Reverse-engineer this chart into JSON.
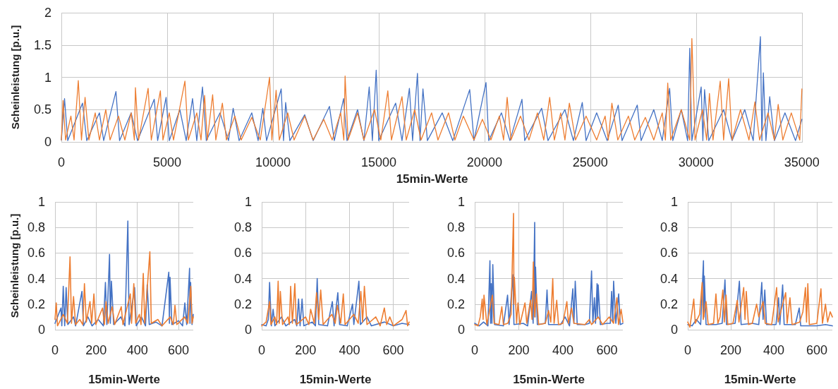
{
  "chart_data": [
    {
      "type": "line",
      "xlabel": "15min-Werte",
      "ylabel": "Scheinleistung [p.u.]",
      "xlim": [
        0,
        35040
      ],
      "xticks": [
        0,
        5000,
        10000,
        15000,
        20000,
        25000,
        30000,
        35000
      ],
      "ylim": [
        0,
        2
      ],
      "yticks": [
        0,
        0.5,
        1,
        1.5,
        2
      ],
      "grid": true,
      "marker": "none",
      "series": [
        {
          "color": "#4472c4",
          "x": [
            0,
            150,
            300,
            1000,
            1200,
            1800,
            2000,
            2580,
            2750,
            3300,
            3600,
            4390,
            4550,
            4950,
            5100,
            5600,
            5900,
            6200,
            6400,
            6670,
            6850,
            7500,
            7900,
            8120,
            8400,
            9000,
            9300,
            9520,
            9700,
            10390,
            10500,
            10600,
            10800,
            11500,
            11900,
            12670,
            12900,
            13340,
            13500,
            14000,
            14300,
            14550,
            14700,
            14880,
            15000,
            15800,
            16100,
            16450,
            16600,
            16830,
            16950,
            17090,
            17300,
            18000,
            18500,
            19300,
            19500,
            20070,
            20200,
            20800,
            21200,
            21770,
            21900,
            22700,
            23000,
            23800,
            24200,
            24620,
            24800,
            25300,
            25800,
            26320,
            26500,
            27220,
            27400,
            28000,
            28400,
            28750,
            28900,
            29300,
            29600,
            29700,
            29800,
            30240,
            30320,
            30400,
            30600,
            31300,
            31700,
            32300,
            32700,
            33040,
            33110,
            33180,
            33300,
            33480,
            33700,
            34200,
            34700,
            35000
          ],
          "values": [
            0.03,
            0.67,
            0.02,
            0.6,
            0.02,
            0.45,
            0.02,
            0.78,
            0.02,
            0.45,
            0.02,
            0.66,
            0.02,
            0.69,
            0.02,
            0.5,
            0.02,
            0.67,
            0.02,
            0.85,
            0.02,
            0.45,
            0.02,
            0.52,
            0.02,
            0.45,
            0.02,
            0.52,
            0.02,
            0.82,
            0.02,
            0.61,
            0.02,
            0.42,
            0.02,
            0.55,
            0.02,
            0.67,
            0.02,
            0.5,
            0.02,
            0.85,
            0.02,
            1.11,
            0.02,
            0.6,
            0.02,
            0.83,
            0.02,
            1.06,
            0.02,
            0.82,
            0.02,
            0.45,
            0.02,
            0.81,
            0.02,
            0.92,
            0.02,
            0.45,
            0.02,
            0.66,
            0.02,
            0.52,
            0.02,
            0.5,
            0.02,
            0.61,
            0.02,
            0.45,
            0.02,
            0.57,
            0.02,
            0.57,
            0.02,
            0.5,
            0.02,
            0.83,
            0.02,
            0.5,
            0.02,
            1.45,
            0.02,
            0.85,
            0.02,
            0.81,
            0.02,
            0.5,
            0.02,
            0.5,
            0.02,
            1.63,
            0.02,
            1.07,
            0.02,
            0.7,
            0.02,
            0.45,
            0.02,
            0.35
          ]
        },
        {
          "color": "#ed7d31",
          "x": [
            0,
            80,
            200,
            450,
            600,
            800,
            950,
            1120,
            1300,
            1600,
            1800,
            2100,
            2300,
            2700,
            3000,
            3300,
            3450,
            3500,
            3650,
            4100,
            4250,
            4680,
            4800,
            5100,
            5300,
            5840,
            6000,
            6400,
            6600,
            6770,
            6900,
            7150,
            7300,
            7610,
            7800,
            8200,
            8500,
            9000,
            9400,
            9840,
            9950,
            10150,
            10300,
            10700,
            11000,
            11500,
            11900,
            12400,
            12800,
            13200,
            13350,
            13410,
            13550,
            14000,
            14300,
            14800,
            15100,
            15430,
            15600,
            16100,
            16300,
            16700,
            17000,
            17500,
            17800,
            18300,
            18600,
            19000,
            19500,
            19900,
            20300,
            20700,
            20900,
            21070,
            21250,
            21700,
            22100,
            22500,
            22800,
            23080,
            23300,
            23600,
            23800,
            24010,
            24300,
            24800,
            25300,
            25700,
            25850,
            26020,
            26300,
            26800,
            27100,
            27600,
            28000,
            28400,
            28550,
            28660,
            28800,
            29300,
            29700,
            29800,
            29950,
            30300,
            30500,
            30630,
            30800,
            31140,
            31300,
            31540,
            31700,
            32100,
            32500,
            32780,
            33000,
            33400,
            33700,
            33880,
            34100,
            34500,
            34900,
            35000
          ],
          "values": [
            0.03,
            0.64,
            0.03,
            0.4,
            0.03,
            0.95,
            0.03,
            0.69,
            0.03,
            0.45,
            0.03,
            0.5,
            0.03,
            0.4,
            0.03,
            0.45,
            0.03,
            0.84,
            0.03,
            0.83,
            0.03,
            0.79,
            0.03,
            0.45,
            0.03,
            0.94,
            0.03,
            0.45,
            0.03,
            0.72,
            0.03,
            0.73,
            0.03,
            0.6,
            0.03,
            0.4,
            0.03,
            0.38,
            0.03,
            1.0,
            0.03,
            0.8,
            0.03,
            0.45,
            0.03,
            0.4,
            0.03,
            0.35,
            0.03,
            0.45,
            0.03,
            1.02,
            0.03,
            0.45,
            0.03,
            0.5,
            0.03,
            0.79,
            0.03,
            0.7,
            0.03,
            0.5,
            0.03,
            0.45,
            0.03,
            0.45,
            0.03,
            0.4,
            0.03,
            0.35,
            0.03,
            0.4,
            0.03,
            0.69,
            0.03,
            0.4,
            0.03,
            0.45,
            0.03,
            0.69,
            0.03,
            0.45,
            0.03,
            0.6,
            0.03,
            0.4,
            0.03,
            0.4,
            0.03,
            0.6,
            0.03,
            0.4,
            0.03,
            0.38,
            0.03,
            0.45,
            0.03,
            0.91,
            0.03,
            0.5,
            0.03,
            1.6,
            0.03,
            0.5,
            0.03,
            0.75,
            0.03,
            0.94,
            0.03,
            0.98,
            0.03,
            0.5,
            0.03,
            0.62,
            0.03,
            0.45,
            0.03,
            0.58,
            0.03,
            0.45,
            0.03,
            0.82
          ]
        }
      ]
    },
    {
      "type": "line",
      "xlabel": "15min-Werte",
      "ylabel": "Scheinleistung [p.u.]",
      "xlim": [
        0,
        672
      ],
      "xticks": [
        0,
        200,
        400,
        600
      ],
      "ylim": [
        0,
        1
      ],
      "yticks": [
        0,
        0.2,
        0.4,
        0.6,
        0.8,
        1
      ],
      "grid": true,
      "marker": "none",
      "series": [
        {
          "color": "#4472c4",
          "x": [
            0,
            29,
            33,
            40,
            47,
            54,
            62,
            90,
            100,
            131,
            138,
            160,
            180,
            210,
            235,
            245,
            252,
            265,
            269,
            274,
            285,
            320,
            340,
            354,
            360,
            387,
            395,
            420,
            440,
            448,
            458,
            490,
            520,
            553,
            556,
            559,
            568,
            600,
            620,
            631,
            640,
            654,
            656,
            659,
            666,
            672
          ],
          "values": [
            0.05,
            0.17,
            0.03,
            0.34,
            0.03,
            0.33,
            0.04,
            0.1,
            0.03,
            0.3,
            0.03,
            0.1,
            0.03,
            0.08,
            0.03,
            0.37,
            0.04,
            0.59,
            0.05,
            0.38,
            0.04,
            0.1,
            0.03,
            0.85,
            0.04,
            0.33,
            0.03,
            0.1,
            0.03,
            0.35,
            0.04,
            0.06,
            0.03,
            0.45,
            0.05,
            0.41,
            0.04,
            0.07,
            0.03,
            0.21,
            0.04,
            0.48,
            0.05,
            0.37,
            0.04,
            0.12
          ]
        },
        {
          "color": "#ed7d31",
          "x": [
            0,
            6,
            12,
            40,
            60,
            73,
            80,
            90,
            100,
            120,
            135,
            143,
            152,
            170,
            178,
            189,
            198,
            231,
            240,
            248,
            258,
            278,
            290,
            322,
            330,
            366,
            372,
            383,
            392,
            410,
            418,
            429,
            436,
            461,
            468,
            500,
            520,
            560,
            575,
            583,
            592,
            630,
            645,
            660,
            666,
            672
          ],
          "values": [
            0.08,
            0.21,
            0.03,
            0.12,
            0.05,
            0.57,
            0.05,
            0.26,
            0.04,
            0.08,
            0.04,
            0.36,
            0.06,
            0.22,
            0.05,
            0.28,
            0.04,
            0.17,
            0.04,
            0.22,
            0.05,
            0.18,
            0.04,
            0.18,
            0.04,
            0.28,
            0.05,
            0.36,
            0.05,
            0.12,
            0.04,
            0.44,
            0.05,
            0.61,
            0.05,
            0.08,
            0.03,
            0.1,
            0.04,
            0.19,
            0.04,
            0.1,
            0.05,
            0.34,
            0.05,
            0.1
          ]
        }
      ]
    },
    {
      "type": "line",
      "xlabel": "15min-Werte",
      "xlim": [
        0,
        672
      ],
      "xticks": [
        0,
        200,
        400,
        600
      ],
      "ylim": [
        0,
        1
      ],
      "yticks": [
        0,
        0.2,
        0.4,
        0.6,
        0.8,
        1
      ],
      "grid": true,
      "marker": "none",
      "series": [
        {
          "color": "#4472c4",
          "x": [
            0,
            20,
            30,
            36,
            44,
            52,
            60,
            90,
            110,
            150,
            160,
            168,
            175,
            184,
            192,
            230,
            245,
            253,
            260,
            300,
            322,
            330,
            347,
            355,
            390,
            414,
            420,
            443,
            450,
            480,
            500,
            560,
            600,
            640,
            672
          ],
          "values": [
            0.04,
            0.03,
            0.08,
            0.37,
            0.03,
            0.16,
            0.03,
            0.1,
            0.03,
            0.08,
            0.03,
            0.24,
            0.03,
            0.24,
            0.03,
            0.06,
            0.03,
            0.4,
            0.04,
            0.03,
            0.22,
            0.03,
            0.29,
            0.04,
            0.03,
            0.2,
            0.04,
            0.38,
            0.04,
            0.1,
            0.03,
            0.06,
            0.03,
            0.05,
            0.04
          ]
        },
        {
          "color": "#ed7d31",
          "x": [
            0,
            20,
            36,
            42,
            60,
            68,
            75,
            80,
            85,
            95,
            120,
            126,
            132,
            140,
            151,
            158,
            200,
            215,
            223,
            240,
            250,
            260,
            269,
            280,
            320,
            335,
            345,
            360,
            372,
            380,
            420,
            440,
            452,
            460,
            468,
            480,
            520,
            540,
            559,
            570,
            584,
            600,
            640,
            658,
            665,
            672
          ],
          "values": [
            0.03,
            0.06,
            0.22,
            0.04,
            0.1,
            0.04,
            0.38,
            0.05,
            0.3,
            0.04,
            0.1,
            0.04,
            0.34,
            0.05,
            0.36,
            0.04,
            0.1,
            0.04,
            0.16,
            0.05,
            0.29,
            0.08,
            0.31,
            0.04,
            0.12,
            0.05,
            0.19,
            0.05,
            0.28,
            0.04,
            0.12,
            0.05,
            0.3,
            0.06,
            0.34,
            0.04,
            0.1,
            0.03,
            0.17,
            0.04,
            0.1,
            0.03,
            0.08,
            0.15,
            0.03,
            0.06
          ]
        }
      ]
    },
    {
      "type": "line",
      "xlabel": "15min-Werte",
      "xlim": [
        0,
        672
      ],
      "xticks": [
        0,
        200,
        400,
        600
      ],
      "ylim": [
        0,
        1
      ],
      "yticks": [
        0,
        0.2,
        0.4,
        0.6,
        0.8,
        1
      ],
      "grid": true,
      "marker": "none",
      "series": [
        {
          "color": "#4472c4",
          "x": [
            0,
            20,
            40,
            60,
            69,
            72,
            75,
            78,
            82,
            90,
            130,
            149,
            156,
            173,
            178,
            220,
            240,
            258,
            265,
            272,
            274,
            276,
            284,
            320,
            328,
            335,
            390,
            410,
            430,
            445,
            450,
            456,
            465,
            500,
            520,
            530,
            536,
            543,
            548,
            555,
            557,
            560,
            570,
            600,
            615,
            621,
            626,
            630,
            640,
            653,
            660,
            672
          ],
          "values": [
            0.05,
            0.03,
            0.06,
            0.03,
            0.54,
            0.05,
            0.36,
            0.05,
            0.51,
            0.04,
            0.03,
            0.27,
            0.04,
            0.43,
            0.04,
            0.05,
            0.03,
            0.3,
            0.05,
            0.84,
            0.1,
            0.49,
            0.04,
            0.05,
            0.31,
            0.04,
            0.04,
            0.1,
            0.03,
            0.32,
            0.05,
            0.38,
            0.04,
            0.04,
            0.05,
            0.46,
            0.05,
            0.25,
            0.05,
            0.36,
            0.1,
            0.35,
            0.04,
            0.05,
            0.05,
            0.3,
            0.06,
            0.38,
            0.05,
            0.28,
            0.04,
            0.05
          ]
        },
        {
          "color": "#ed7d31",
          "x": [
            0,
            15,
            25,
            34,
            38,
            42,
            55,
            80,
            88,
            110,
            123,
            130,
            150,
            165,
            176,
            178,
            180,
            190,
            196,
            205,
            228,
            236,
            253,
            260,
            266,
            272,
            280,
            290,
            320,
            335,
            345,
            354,
            360,
            372,
            380,
            400,
            418,
            425,
            439,
            450,
            500,
            520,
            530,
            560,
            580,
            610,
            630,
            645,
            652,
            664,
            672
          ],
          "values": [
            0.04,
            0.03,
            0.1,
            0.24,
            0.08,
            0.27,
            0.04,
            0.27,
            0.05,
            0.04,
            0.18,
            0.04,
            0.05,
            0.12,
            0.91,
            0.2,
            0.41,
            0.05,
            0.21,
            0.04,
            0.21,
            0.05,
            0.23,
            0.08,
            0.53,
            0.1,
            0.28,
            0.04,
            0.05,
            0.15,
            0.06,
            0.4,
            0.05,
            0.23,
            0.04,
            0.05,
            0.22,
            0.05,
            0.17,
            0.05,
            0.04,
            0.08,
            0.04,
            0.1,
            0.04,
            0.1,
            0.05,
            0.25,
            0.04,
            0.16,
            0.06
          ]
        }
      ]
    },
    {
      "type": "line",
      "xlabel": "15min-Werte",
      "xlim": [
        0,
        672
      ],
      "xticks": [
        0,
        200,
        400,
        600
      ],
      "ylim": [
        0,
        1
      ],
      "yticks": [
        0,
        0.2,
        0.4,
        0.6,
        0.8,
        1
      ],
      "grid": true,
      "marker": "none",
      "series": [
        {
          "color": "#4472c4",
          "x": [
            0,
            20,
            40,
            60,
            73,
            75,
            77,
            85,
            130,
            160,
            173,
            180,
            220,
            230,
            240,
            248,
            300,
            330,
            344,
            350,
            358,
            366,
            410,
            422,
            428,
            441,
            448,
            500,
            518,
            525,
            600,
            640,
            672
          ],
          "values": [
            0.04,
            0.03,
            0.08,
            0.04,
            0.54,
            0.1,
            0.42,
            0.04,
            0.04,
            0.05,
            0.39,
            0.04,
            0.05,
            0.2,
            0.38,
            0.04,
            0.05,
            0.04,
            0.37,
            0.08,
            0.31,
            0.04,
            0.04,
            0.25,
            0.04,
            0.35,
            0.04,
            0.04,
            0.17,
            0.03,
            0.03,
            0.04,
            0.03
          ]
        },
        {
          "color": "#ed7d31",
          "x": [
            0,
            10,
            28,
            35,
            55,
            67,
            72,
            85,
            95,
            120,
            131,
            140,
            150,
            163,
            170,
            178,
            186,
            210,
            230,
            238,
            260,
            266,
            272,
            282,
            300,
            320,
            330,
            350,
            360,
            390,
            413,
            420,
            455,
            462,
            475,
            485,
            520,
            535,
            547,
            552,
            558,
            565,
            600,
            619,
            626,
            640,
            650,
            662,
            672
          ],
          "values": [
            0.06,
            0.02,
            0.24,
            0.05,
            0.12,
            0.37,
            0.08,
            0.22,
            0.04,
            0.05,
            0.28,
            0.05,
            0.1,
            0.31,
            0.06,
            0.27,
            0.04,
            0.05,
            0.23,
            0.06,
            0.33,
            0.08,
            0.3,
            0.04,
            0.05,
            0.2,
            0.1,
            0.22,
            0.05,
            0.04,
            0.33,
            0.06,
            0.29,
            0.05,
            0.25,
            0.04,
            0.06,
            0.14,
            0.33,
            0.06,
            0.36,
            0.04,
            0.05,
            0.32,
            0.05,
            0.2,
            0.06,
            0.14,
            0.1
          ]
        }
      ]
    }
  ]
}
